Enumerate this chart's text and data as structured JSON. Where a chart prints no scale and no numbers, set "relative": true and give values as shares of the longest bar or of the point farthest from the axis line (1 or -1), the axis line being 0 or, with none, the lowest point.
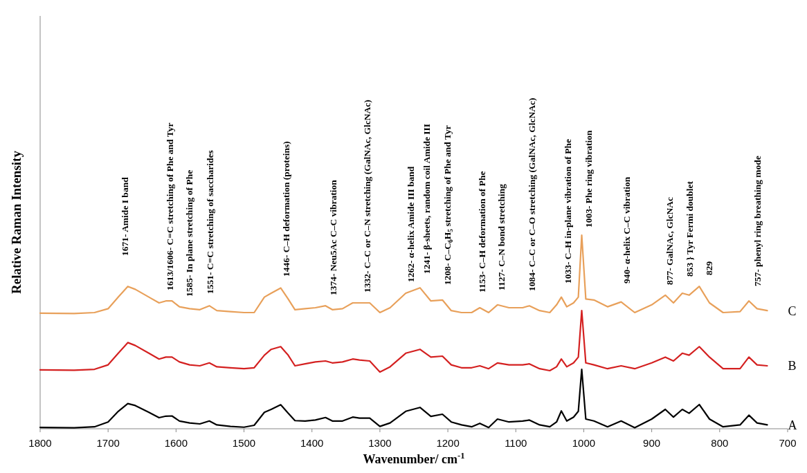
{
  "chart_data": {
    "type": "line",
    "relative": true,
    "xlabel": "Wavenumber/ cm$^{-1}$",
    "ylabel": "Relative Raman Intensity",
    "xlim": [
      1800,
      700
    ],
    "xticks": [
      1800,
      1700,
      1600,
      1500,
      1400,
      1300,
      1200,
      1100,
      1000,
      900,
      800,
      700
    ],
    "tick_labels": "x",
    "grid": false,
    "legend": false,
    "x": [
      1800,
      1750,
      1720,
      1700,
      1685,
      1671,
      1660,
      1640,
      1625,
      1615,
      1606,
      1595,
      1580,
      1565,
      1551,
      1540,
      1520,
      1500,
      1485,
      1470,
      1460,
      1446,
      1435,
      1425,
      1410,
      1395,
      1380,
      1370,
      1355,
      1340,
      1330,
      1315,
      1300,
      1285,
      1262,
      1241,
      1225,
      1208,
      1195,
      1180,
      1165,
      1153,
      1140,
      1127,
      1110,
      1090,
      1080,
      1065,
      1050,
      1040,
      1033,
      1025,
      1015,
      1008,
      1003,
      997,
      985,
      965,
      945,
      925,
      900,
      880,
      868,
      855,
      845,
      830,
      815,
      795,
      770,
      757,
      745,
      730
    ],
    "series": [
      {
        "name": "A",
        "color": "#000000",
        "values": [
          0.007,
          0.005,
          0.01,
          0.035,
          0.09,
          0.13,
          0.12,
          0.085,
          0.057,
          0.065,
          0.066,
          0.04,
          0.03,
          0.025,
          0.04,
          0.02,
          0.012,
          0.008,
          0.018,
          0.085,
          0.1,
          0.124,
          0.08,
          0.042,
          0.04,
          0.045,
          0.058,
          0.04,
          0.04,
          0.06,
          0.055,
          0.055,
          0.012,
          0.03,
          0.09,
          0.11,
          0.064,
          0.075,
          0.035,
          0.02,
          0.01,
          0.028,
          0.006,
          0.05,
          0.035,
          0.04,
          0.045,
          0.02,
          0.01,
          0.035,
          0.092,
          0.04,
          0.06,
          0.09,
          0.307,
          0.05,
          0.04,
          0.01,
          0.04,
          0.005,
          0.05,
          0.1,
          0.06,
          0.1,
          0.08,
          0.125,
          0.05,
          0.01,
          0.02,
          0.07,
          0.03,
          0.02
        ]
      },
      {
        "name": "B",
        "color": "#d42020",
        "values": [
          0.304,
          0.302,
          0.307,
          0.33,
          0.39,
          0.445,
          0.43,
          0.39,
          0.36,
          0.37,
          0.37,
          0.345,
          0.33,
          0.325,
          0.34,
          0.32,
          0.315,
          0.31,
          0.315,
          0.38,
          0.41,
          0.424,
          0.38,
          0.325,
          0.335,
          0.345,
          0.35,
          0.34,
          0.345,
          0.36,
          0.355,
          0.35,
          0.293,
          0.32,
          0.39,
          0.41,
          0.37,
          0.375,
          0.33,
          0.315,
          0.315,
          0.325,
          0.31,
          0.34,
          0.33,
          0.33,
          0.335,
          0.31,
          0.3,
          0.32,
          0.36,
          0.32,
          0.34,
          0.37,
          0.61,
          0.34,
          0.33,
          0.31,
          0.325,
          0.31,
          0.34,
          0.37,
          0.35,
          0.39,
          0.38,
          0.424,
          0.37,
          0.31,
          0.31,
          0.37,
          0.33,
          0.325
        ]
      },
      {
        "name": "C",
        "color": "#e8a05a",
        "values": [
          0.597,
          0.595,
          0.6,
          0.62,
          0.68,
          0.735,
          0.72,
          0.68,
          0.65,
          0.66,
          0.66,
          0.63,
          0.62,
          0.615,
          0.635,
          0.61,
          0.605,
          0.6,
          0.6,
          0.68,
          0.7,
          0.727,
          0.67,
          0.615,
          0.62,
          0.625,
          0.635,
          0.615,
          0.62,
          0.65,
          0.65,
          0.65,
          0.6,
          0.625,
          0.7,
          0.728,
          0.66,
          0.665,
          0.61,
          0.6,
          0.6,
          0.625,
          0.6,
          0.64,
          0.625,
          0.625,
          0.635,
          0.61,
          0.6,
          0.64,
          0.68,
          0.63,
          0.65,
          0.68,
          1.0,
          0.67,
          0.665,
          0.63,
          0.655,
          0.6,
          0.64,
          0.69,
          0.65,
          0.7,
          0.69,
          0.735,
          0.65,
          0.6,
          0.605,
          0.66,
          0.62,
          0.61
        ]
      }
    ],
    "annotations": [
      "1671- Amide I band",
      "1613/1606- C=C stretching of Phe and Tyr",
      "1585- In plane stretching of Phe",
      "1551- C=C stretching of saccharides",
      "1446- C–H deformation (proteins)",
      "1374- Neu5Ac C–C vibration",
      "1332- C–C or C–N stretching (GalNAc, GlcNAc)",
      "1262- α-helix Amide III band",
      "1241- β-sheets, random coil Amide III",
      "1208- C–C$_{6}$H$_{5}$ stretching of Phe and Tyr",
      "1153- C–H deformation of Phe",
      "1127- C–N bond stretching",
      "1084- C–C or C–O stretching (GalNAc, GlcNAc)",
      "1033- C–H in-plane vibration of Phe",
      "1003- Phe ring vibration",
      "940- α-helix C–C vibration",
      "877- GalNAc, GlcNAc",
      "853 } Tyr Fermi doublet",
      "829",
      "757- phenyl ring breathing mode"
    ]
  }
}
